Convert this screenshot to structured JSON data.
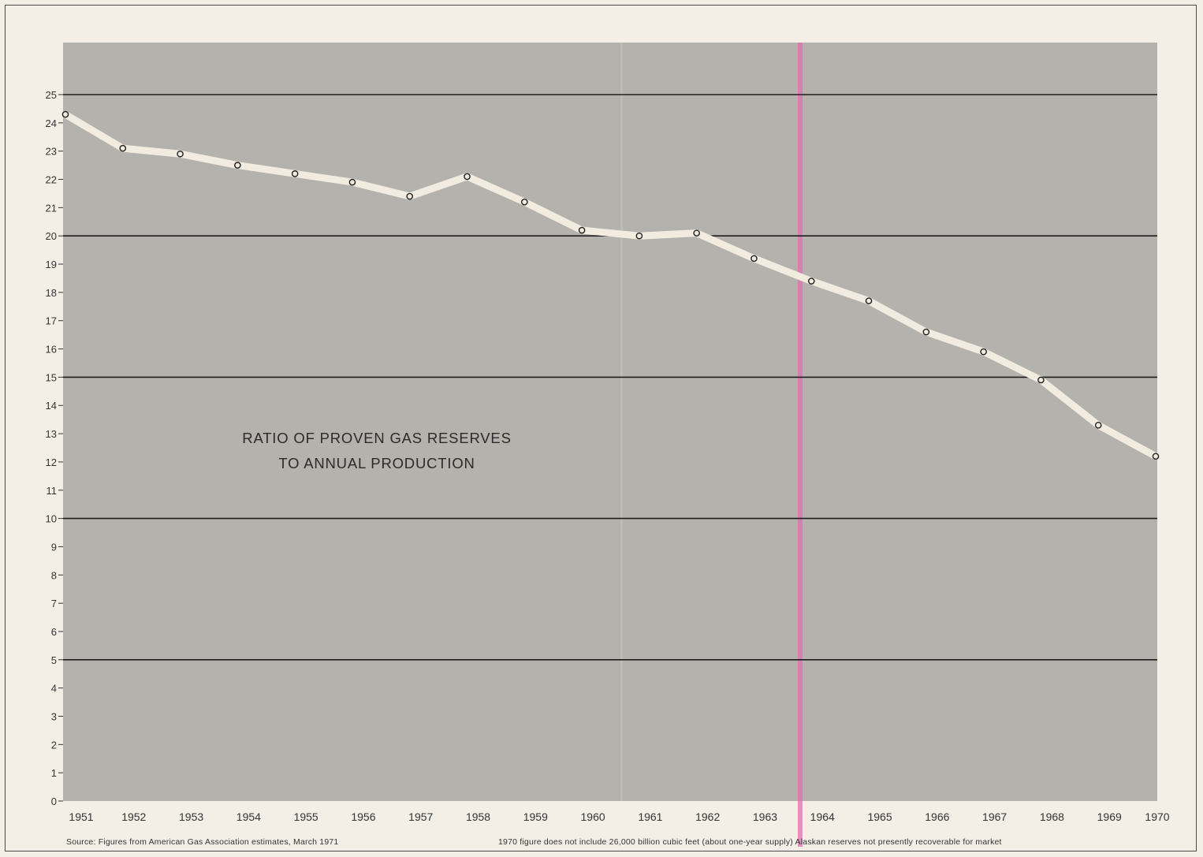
{
  "chart_data": {
    "type": "line",
    "title_lines": [
      "RATIO OF PROVEN GAS RESERVES",
      "TO ANNUAL PRODUCTION"
    ],
    "xlabel": "",
    "ylabel": "",
    "x": [
      1951,
      1952,
      1953,
      1954,
      1955,
      1956,
      1957,
      1958,
      1959,
      1960,
      1961,
      1962,
      1963,
      1964,
      1965,
      1966,
      1967,
      1968,
      1969,
      1970
    ],
    "x_tick_labels": [
      "1951",
      "1952",
      "1953",
      "1954",
      "1955",
      "1956",
      "1957",
      "1958",
      "1959",
      "1960",
      "1961",
      "1962",
      "1963",
      "1964",
      "1965",
      "1966",
      "1967",
      "1968",
      "1969",
      "1970"
    ],
    "series": [
      {
        "values": [
          24.3,
          23.1,
          22.9,
          22.5,
          22.2,
          21.9,
          21.4,
          22.1,
          21.2,
          20.2,
          20.0,
          20.1,
          19.2,
          18.4,
          17.7,
          16.6,
          15.9,
          14.9,
          13.3,
          12.2
        ]
      }
    ],
    "y_ticks": [
      0,
      1,
      2,
      3,
      4,
      5,
      6,
      7,
      8,
      9,
      10,
      11,
      12,
      13,
      14,
      15,
      16,
      17,
      18,
      19,
      20,
      21,
      22,
      23,
      24,
      25
    ],
    "y_tick_labels": [
      "0",
      "1",
      "2",
      "3",
      "4",
      "5",
      "6",
      "7",
      "8",
      "9",
      "10",
      "11",
      "12",
      "13",
      "14",
      "15",
      "16",
      "17",
      "18",
      "19",
      "20",
      "21",
      "22",
      "23",
      "24",
      "25"
    ],
    "major_gridlines": [
      5,
      10,
      15,
      20,
      25
    ],
    "ylim": [
      0,
      25
    ],
    "xlim": [
      1951,
      1970
    ],
    "grid": true,
    "legend": "none",
    "colors": {
      "plot_background": "#b4b2ac",
      "line": "#f2ece0",
      "marker_stroke": "#1f1f1f",
      "gridline": "#1e1e1e",
      "page_background": "#f3efe6"
    }
  },
  "footnotes": {
    "source": "Source: Figures from American Gas Association estimates, March 1971",
    "note": "1970 figure does not include 26,000 billion cubic feet (about one-year supply) Alaskan reserves not presently recoverable for market"
  }
}
